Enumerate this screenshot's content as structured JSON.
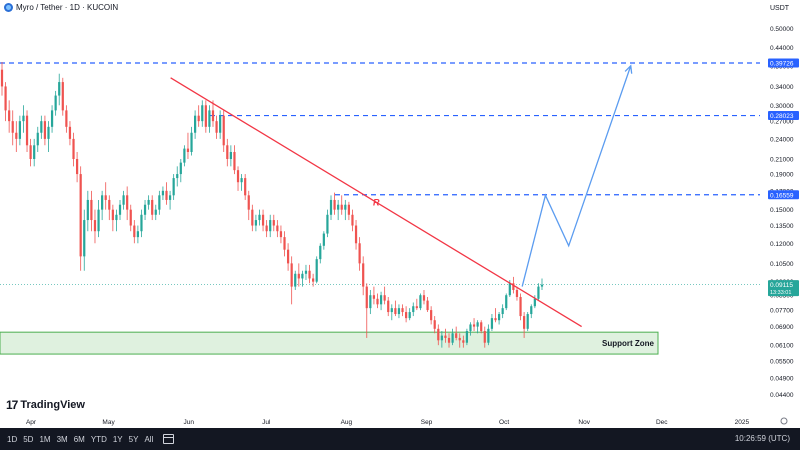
{
  "header": {
    "symbol_title": "Myro / Tether · 1D · KUCOIN",
    "currency": "USDT"
  },
  "chart_data": {
    "type": "candlestick",
    "title": "Myro / Tether · 1D · KUCOIN",
    "x_ticks": [
      "Apr",
      "May",
      "Jun",
      "Jul",
      "Aug",
      "Sep",
      "Oct",
      "Nov",
      "Dec",
      "2025"
    ],
    "y_scale": "log",
    "ylim": [
      0.041,
      0.55
    ],
    "y_ticks": [
      "0.50000",
      "0.44000",
      "0.39000",
      "0.34000",
      "0.30000",
      "0.27000",
      "0.24000",
      "0.21000",
      "0.19000",
      "0.17000",
      "0.15000",
      "0.13500",
      "0.12000",
      "0.10500",
      "0.09300",
      "0.08500",
      "0.07700",
      "0.06900",
      "0.06100",
      "0.05500",
      "0.04900",
      "0.04400"
    ],
    "price_labels": [
      {
        "value": 0.39726,
        "text": "0.39726",
        "color": "#2962ff"
      },
      {
        "value": 0.28023,
        "text": "0.28023",
        "color": "#2962ff"
      },
      {
        "value": 0.16559,
        "text": "0.16559",
        "color": "#2962ff"
      },
      {
        "value": 0.09115,
        "text": "0.09115",
        "subtext": "13:33:01",
        "color": "#26a69a"
      }
    ],
    "horizontal_levels": [
      0.39726,
      0.28023,
      0.16559
    ],
    "trendline": {
      "label": "R",
      "from": [
        "2024-05-25",
        0.36
      ],
      "to": [
        "2024-10-31",
        0.069
      ],
      "color": "#f23645"
    },
    "support_zone": {
      "label": "Support Zone",
      "low": 0.0575,
      "high": 0.0665,
      "color": "#4caf50"
    },
    "projection_path": [
      [
        "2024-10-08",
        0.09
      ],
      [
        "2024-10-17",
        0.165
      ],
      [
        "2024-10-26",
        0.118
      ],
      [
        "2024-11-19",
        0.39
      ]
    ],
    "candles": [
      [
        0.38,
        0.4,
        0.32,
        0.34
      ],
      [
        0.34,
        0.35,
        0.27,
        0.29
      ],
      [
        0.29,
        0.31,
        0.25,
        0.27
      ],
      [
        0.27,
        0.29,
        0.23,
        0.25
      ],
      [
        0.25,
        0.27,
        0.22,
        0.24
      ],
      [
        0.24,
        0.28,
        0.23,
        0.27
      ],
      [
        0.27,
        0.3,
        0.25,
        0.28
      ],
      [
        0.28,
        0.29,
        0.22,
        0.23
      ],
      [
        0.23,
        0.24,
        0.2,
        0.21
      ],
      [
        0.21,
        0.24,
        0.2,
        0.23
      ],
      [
        0.23,
        0.26,
        0.22,
        0.25
      ],
      [
        0.25,
        0.28,
        0.24,
        0.27
      ],
      [
        0.27,
        0.28,
        0.23,
        0.24
      ],
      [
        0.24,
        0.27,
        0.22,
        0.26
      ],
      [
        0.26,
        0.3,
        0.25,
        0.29
      ],
      [
        0.29,
        0.33,
        0.28,
        0.32
      ],
      [
        0.32,
        0.37,
        0.3,
        0.35
      ],
      [
        0.35,
        0.36,
        0.28,
        0.29
      ],
      [
        0.29,
        0.3,
        0.25,
        0.26
      ],
      [
        0.26,
        0.27,
        0.23,
        0.24
      ],
      [
        0.24,
        0.25,
        0.2,
        0.21
      ],
      [
        0.21,
        0.22,
        0.18,
        0.19
      ],
      [
        0.19,
        0.2,
        0.1,
        0.11
      ],
      [
        0.11,
        0.15,
        0.1,
        0.14
      ],
      [
        0.14,
        0.17,
        0.13,
        0.16
      ],
      [
        0.16,
        0.17,
        0.13,
        0.14
      ],
      [
        0.14,
        0.15,
        0.12,
        0.13
      ],
      [
        0.13,
        0.16,
        0.125,
        0.15
      ],
      [
        0.15,
        0.17,
        0.14,
        0.165
      ],
      [
        0.165,
        0.18,
        0.15,
        0.16
      ],
      [
        0.16,
        0.165,
        0.14,
        0.15
      ],
      [
        0.15,
        0.155,
        0.13,
        0.14
      ],
      [
        0.14,
        0.15,
        0.13,
        0.145
      ],
      [
        0.145,
        0.16,
        0.14,
        0.155
      ],
      [
        0.155,
        0.17,
        0.15,
        0.165
      ],
      [
        0.165,
        0.175,
        0.14,
        0.15
      ],
      [
        0.15,
        0.155,
        0.13,
        0.135
      ],
      [
        0.135,
        0.14,
        0.12,
        0.125
      ],
      [
        0.125,
        0.135,
        0.12,
        0.13
      ],
      [
        0.13,
        0.15,
        0.125,
        0.145
      ],
      [
        0.145,
        0.16,
        0.14,
        0.155
      ],
      [
        0.155,
        0.165,
        0.15,
        0.16
      ],
      [
        0.16,
        0.165,
        0.14,
        0.145
      ],
      [
        0.145,
        0.155,
        0.14,
        0.15
      ],
      [
        0.15,
        0.17,
        0.145,
        0.165
      ],
      [
        0.165,
        0.175,
        0.16,
        0.17
      ],
      [
        0.17,
        0.18,
        0.155,
        0.16
      ],
      [
        0.16,
        0.17,
        0.15,
        0.165
      ],
      [
        0.165,
        0.19,
        0.16,
        0.185
      ],
      [
        0.185,
        0.2,
        0.175,
        0.19
      ],
      [
        0.19,
        0.21,
        0.18,
        0.205
      ],
      [
        0.205,
        0.23,
        0.2,
        0.225
      ],
      [
        0.225,
        0.25,
        0.21,
        0.22
      ],
      [
        0.22,
        0.26,
        0.215,
        0.25
      ],
      [
        0.25,
        0.29,
        0.24,
        0.28
      ],
      [
        0.28,
        0.3,
        0.26,
        0.27
      ],
      [
        0.27,
        0.31,
        0.26,
        0.3
      ],
      [
        0.3,
        0.31,
        0.25,
        0.26
      ],
      [
        0.26,
        0.3,
        0.25,
        0.29
      ],
      [
        0.29,
        0.31,
        0.26,
        0.27
      ],
      [
        0.27,
        0.28,
        0.24,
        0.25
      ],
      [
        0.25,
        0.29,
        0.24,
        0.28
      ],
      [
        0.28,
        0.29,
        0.22,
        0.23
      ],
      [
        0.23,
        0.24,
        0.2,
        0.21
      ],
      [
        0.21,
        0.23,
        0.2,
        0.22
      ],
      [
        0.22,
        0.23,
        0.19,
        0.195
      ],
      [
        0.195,
        0.2,
        0.17,
        0.18
      ],
      [
        0.18,
        0.19,
        0.17,
        0.185
      ],
      [
        0.185,
        0.19,
        0.16,
        0.165
      ],
      [
        0.165,
        0.17,
        0.14,
        0.15
      ],
      [
        0.15,
        0.155,
        0.13,
        0.135
      ],
      [
        0.135,
        0.145,
        0.13,
        0.14
      ],
      [
        0.14,
        0.15,
        0.135,
        0.145
      ],
      [
        0.145,
        0.15,
        0.13,
        0.135
      ],
      [
        0.135,
        0.14,
        0.125,
        0.13
      ],
      [
        0.13,
        0.145,
        0.125,
        0.14
      ],
      [
        0.14,
        0.145,
        0.13,
        0.135
      ],
      [
        0.135,
        0.14,
        0.125,
        0.13
      ],
      [
        0.13,
        0.135,
        0.12,
        0.125
      ],
      [
        0.125,
        0.13,
        0.11,
        0.115
      ],
      [
        0.115,
        0.12,
        0.1,
        0.105
      ],
      [
        0.105,
        0.11,
        0.08,
        0.09
      ],
      [
        0.09,
        0.1,
        0.088,
        0.098
      ],
      [
        0.098,
        0.105,
        0.09,
        0.095
      ],
      [
        0.095,
        0.1,
        0.09,
        0.098
      ],
      [
        0.098,
        0.104,
        0.094,
        0.1
      ],
      [
        0.1,
        0.104,
        0.092,
        0.095
      ],
      [
        0.095,
        0.098,
        0.09,
        0.093
      ],
      [
        0.093,
        0.11,
        0.092,
        0.108
      ],
      [
        0.108,
        0.12,
        0.105,
        0.118
      ],
      [
        0.118,
        0.13,
        0.115,
        0.128
      ],
      [
        0.128,
        0.15,
        0.125,
        0.145
      ],
      [
        0.145,
        0.165,
        0.14,
        0.16
      ],
      [
        0.16,
        0.168,
        0.145,
        0.15
      ],
      [
        0.15,
        0.16,
        0.14,
        0.155
      ],
      [
        0.155,
        0.165,
        0.145,
        0.15
      ],
      [
        0.15,
        0.16,
        0.14,
        0.155
      ],
      [
        0.155,
        0.158,
        0.14,
        0.145
      ],
      [
        0.145,
        0.15,
        0.13,
        0.135
      ],
      [
        0.135,
        0.14,
        0.115,
        0.12
      ],
      [
        0.12,
        0.125,
        0.1,
        0.105
      ],
      [
        0.105,
        0.11,
        0.085,
        0.09
      ],
      [
        0.09,
        0.092,
        0.064,
        0.078
      ],
      [
        0.078,
        0.088,
        0.075,
        0.085
      ],
      [
        0.085,
        0.09,
        0.08,
        0.083
      ],
      [
        0.083,
        0.086,
        0.078,
        0.08
      ],
      [
        0.08,
        0.087,
        0.077,
        0.085
      ],
      [
        0.085,
        0.09,
        0.08,
        0.082
      ],
      [
        0.082,
        0.084,
        0.074,
        0.076
      ],
      [
        0.076,
        0.08,
        0.072,
        0.078
      ],
      [
        0.078,
        0.082,
        0.074,
        0.075
      ],
      [
        0.075,
        0.08,
        0.073,
        0.078
      ],
      [
        0.078,
        0.08,
        0.074,
        0.076
      ],
      [
        0.076,
        0.079,
        0.071,
        0.073
      ],
      [
        0.073,
        0.078,
        0.072,
        0.076
      ],
      [
        0.076,
        0.081,
        0.074,
        0.079
      ],
      [
        0.079,
        0.083,
        0.077,
        0.078
      ],
      [
        0.078,
        0.086,
        0.077,
        0.085
      ],
      [
        0.085,
        0.088,
        0.08,
        0.082
      ],
      [
        0.082,
        0.084,
        0.076,
        0.077
      ],
      [
        0.077,
        0.079,
        0.07,
        0.072
      ],
      [
        0.072,
        0.074,
        0.066,
        0.068
      ],
      [
        0.068,
        0.07,
        0.061,
        0.063
      ],
      [
        0.063,
        0.067,
        0.06,
        0.065
      ],
      [
        0.065,
        0.068,
        0.062,
        0.064
      ],
      [
        0.064,
        0.066,
        0.06,
        0.062
      ],
      [
        0.062,
        0.068,
        0.061,
        0.066
      ],
      [
        0.066,
        0.069,
        0.063,
        0.064
      ],
      [
        0.064,
        0.066,
        0.06,
        0.063
      ],
      [
        0.063,
        0.065,
        0.06,
        0.062
      ],
      [
        0.062,
        0.068,
        0.061,
        0.067
      ],
      [
        0.067,
        0.071,
        0.065,
        0.07
      ],
      [
        0.07,
        0.073,
        0.067,
        0.069
      ],
      [
        0.069,
        0.072,
        0.066,
        0.071
      ],
      [
        0.071,
        0.072,
        0.066,
        0.067
      ],
      [
        0.067,
        0.069,
        0.06,
        0.062
      ],
      [
        0.062,
        0.07,
        0.061,
        0.068
      ],
      [
        0.068,
        0.075,
        0.067,
        0.073
      ],
      [
        0.073,
        0.078,
        0.071,
        0.072
      ],
      [
        0.072,
        0.076,
        0.07,
        0.075
      ],
      [
        0.075,
        0.08,
        0.073,
        0.078
      ],
      [
        0.078,
        0.086,
        0.077,
        0.085
      ],
      [
        0.085,
        0.094,
        0.084,
        0.092
      ],
      [
        0.092,
        0.096,
        0.086,
        0.088
      ],
      [
        0.088,
        0.09,
        0.082,
        0.084
      ],
      [
        0.084,
        0.086,
        0.072,
        0.074
      ],
      [
        0.074,
        0.076,
        0.064,
        0.068
      ],
      [
        0.068,
        0.076,
        0.067,
        0.075
      ],
      [
        0.075,
        0.08,
        0.073,
        0.079
      ],
      [
        0.079,
        0.085,
        0.078,
        0.083
      ],
      [
        0.083,
        0.092,
        0.082,
        0.09
      ],
      [
        0.09,
        0.095,
        0.088,
        0.09115
      ]
    ]
  },
  "watermark": {
    "logo_text": "TradingView"
  },
  "bottom_bar": {
    "timeframes": [
      "1D",
      "5D",
      "1M",
      "3M",
      "6M",
      "YTD",
      "1Y",
      "5Y",
      "All"
    ],
    "clock": "10:26:59 (UTC)"
  }
}
